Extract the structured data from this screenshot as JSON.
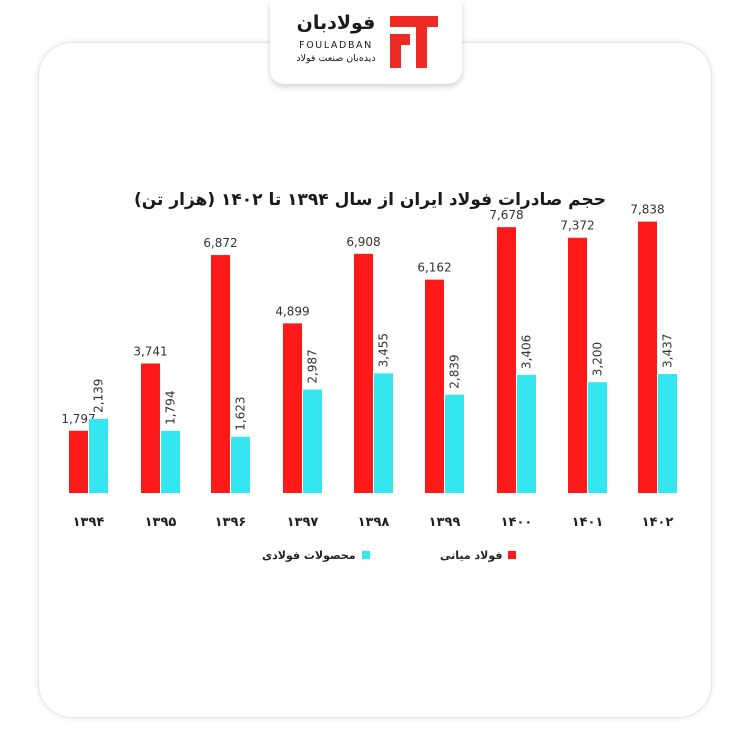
{
  "logo": {
    "name_fa": "فولادبان",
    "name_en": "FOULADBAN",
    "tagline": "دیده‌بان صنعت فولاد"
  },
  "chart_data": {
    "type": "bar",
    "title": "حجم صادرات فولاد ایران از سال ۱۳۹۴ تا ۱۴۰۲ (هزار تن)",
    "xlabel": "",
    "ylabel": "",
    "ylim": [
      0,
      8000
    ],
    "grid": false,
    "legend_position": "bottom",
    "categories": [
      "۱۳۹۴",
      "۱۳۹۵",
      "۱۳۹۶",
      "۱۳۹۷",
      "۱۳۹۸",
      "۱۳۹۹",
      "۱۴۰۰",
      "۱۴۰۱",
      "۱۴۰۲"
    ],
    "series": [
      {
        "name": "فولاد میانی",
        "color": "#ff1a1a",
        "values": [
          1797,
          3741,
          6872,
          4899,
          6908,
          6162,
          7678,
          7372,
          7838
        ],
        "labels": [
          "1,797",
          "3,741",
          "6,872",
          "4,899",
          "6,908",
          "6,162",
          "7,678",
          "7,372",
          "7,838"
        ]
      },
      {
        "name": "محصولات فولادی",
        "color": "#33e6f0",
        "values": [
          2139,
          1794,
          1623,
          2987,
          3455,
          2839,
          3406,
          3200,
          3437
        ],
        "labels": [
          "2,139",
          "1,794",
          "1,623",
          "2,987",
          "3,455",
          "2,839",
          "3,406",
          "3,200",
          "3,437"
        ]
      }
    ]
  }
}
